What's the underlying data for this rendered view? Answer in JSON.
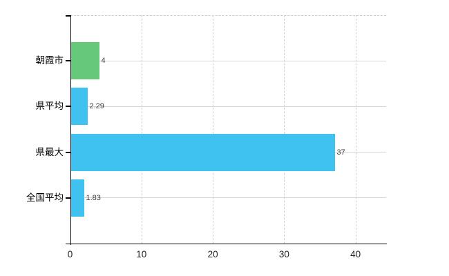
{
  "chart_data": {
    "type": "bar",
    "orientation": "horizontal",
    "title": "",
    "xlabel": "",
    "ylabel": "",
    "categories": [
      "朝霞市",
      "県平均",
      "県最大",
      "全国平均"
    ],
    "values": [
      4,
      2.29,
      37,
      1.83
    ],
    "value_labels": [
      "4",
      "2.29",
      "37",
      "1.83"
    ],
    "bar_colors": [
      "#66c87b",
      "#3fc2f0",
      "#3fc2f0",
      "#3fc2f0"
    ],
    "x_tick_labels": [
      "0",
      "10",
      "20",
      "30",
      "40"
    ],
    "x_tick_values": [
      0,
      10,
      20,
      30,
      40
    ],
    "xlim": [
      0,
      44.3
    ],
    "grid": true,
    "legend_position": "none",
    "colors": {
      "bar_green": "#66c87b",
      "bar_blue": "#3fc2f0",
      "axis": "#000000",
      "grid_solid": "#d0d6d0",
      "grid_dashed": "#c9d1c9",
      "value_label_text": "#3a3a3a",
      "tick_label_text": "#222222",
      "background": "#ffffff"
    }
  }
}
